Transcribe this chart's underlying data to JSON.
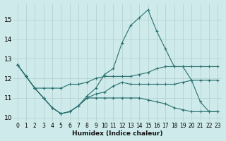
{
  "title": "",
  "xlabel": "Humidex (Indice chaleur)",
  "ylabel": "",
  "background_color": "#ceeaea",
  "line_color": "#2a7070",
  "grid_color": "#b0cccc",
  "x_data": [
    0,
    1,
    2,
    3,
    4,
    5,
    6,
    7,
    8,
    9,
    10,
    11,
    12,
    13,
    14,
    15,
    16,
    17,
    18,
    19,
    20,
    21,
    22,
    23
  ],
  "series": [
    [
      12.7,
      12.1,
      11.5,
      11.0,
      10.5,
      10.2,
      10.3,
      10.6,
      11.1,
      11.5,
      12.2,
      12.5,
      13.8,
      14.7,
      15.1,
      15.5,
      14.4,
      13.5,
      12.6,
      12.6,
      11.9,
      10.8,
      10.3,
      10.3
    ],
    [
      12.7,
      12.1,
      11.5,
      11.5,
      11.5,
      11.5,
      11.7,
      11.7,
      11.8,
      12.0,
      12.1,
      12.1,
      12.1,
      12.1,
      12.2,
      12.3,
      12.5,
      12.6,
      12.6,
      12.6,
      12.6,
      12.6,
      12.6,
      12.6
    ],
    [
      12.7,
      12.1,
      11.5,
      11.0,
      10.5,
      10.2,
      10.3,
      10.6,
      11.0,
      11.0,
      11.0,
      11.0,
      11.0,
      11.0,
      11.0,
      10.9,
      10.8,
      10.7,
      10.5,
      10.4,
      10.3,
      10.3,
      10.3,
      10.3
    ],
    [
      12.7,
      12.1,
      11.5,
      11.0,
      10.5,
      10.2,
      10.3,
      10.6,
      11.0,
      11.2,
      11.3,
      11.6,
      11.8,
      11.7,
      11.7,
      11.7,
      11.7,
      11.7,
      11.7,
      11.8,
      11.9,
      11.9,
      11.9,
      11.9
    ]
  ],
  "xlim": [
    -0.5,
    23.5
  ],
  "ylim": [
    9.8,
    15.8
  ],
  "yticks": [
    10,
    11,
    12,
    13,
    14,
    15
  ],
  "xticks": [
    0,
    1,
    2,
    3,
    4,
    5,
    6,
    7,
    8,
    9,
    10,
    11,
    12,
    13,
    14,
    15,
    16,
    17,
    18,
    19,
    20,
    21,
    22,
    23
  ]
}
